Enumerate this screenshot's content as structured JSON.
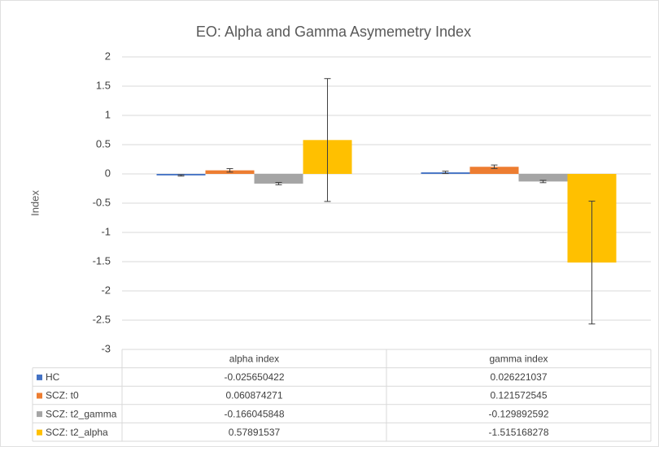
{
  "chart_data": {
    "type": "bar",
    "title": "EO: Alpha and Gamma Asymemetry Index",
    "y_label": "Index",
    "categories": [
      "alpha index",
      "gamma index"
    ],
    "series": [
      {
        "name": "HC",
        "color": "#4472c4",
        "values": [
          -0.025650422,
          0.026221037
        ],
        "errors": [
          0.012,
          0.02
        ]
      },
      {
        "name": "SCZ: t0",
        "color": "#ed7d31",
        "values": [
          0.060874271,
          0.121572545
        ],
        "errors": [
          0.03,
          0.03
        ]
      },
      {
        "name": "SCZ: t2_gamma",
        "color": "#a5a5a5",
        "values": [
          -0.166045848,
          -0.129892592
        ],
        "errors": [
          0.02,
          0.02
        ]
      },
      {
        "name": "SCZ: t2_alpha",
        "color": "#ffc000",
        "values": [
          0.57891537,
          -1.515168278
        ],
        "errors": [
          1.05,
          1.05
        ]
      }
    ],
    "ylim": [
      -3,
      2
    ],
    "yticks": [
      2,
      1.5,
      1,
      0.5,
      0,
      -0.5,
      -1,
      -1.5,
      -2,
      -2.5,
      -3
    ],
    "grid": true,
    "data_table": true
  }
}
